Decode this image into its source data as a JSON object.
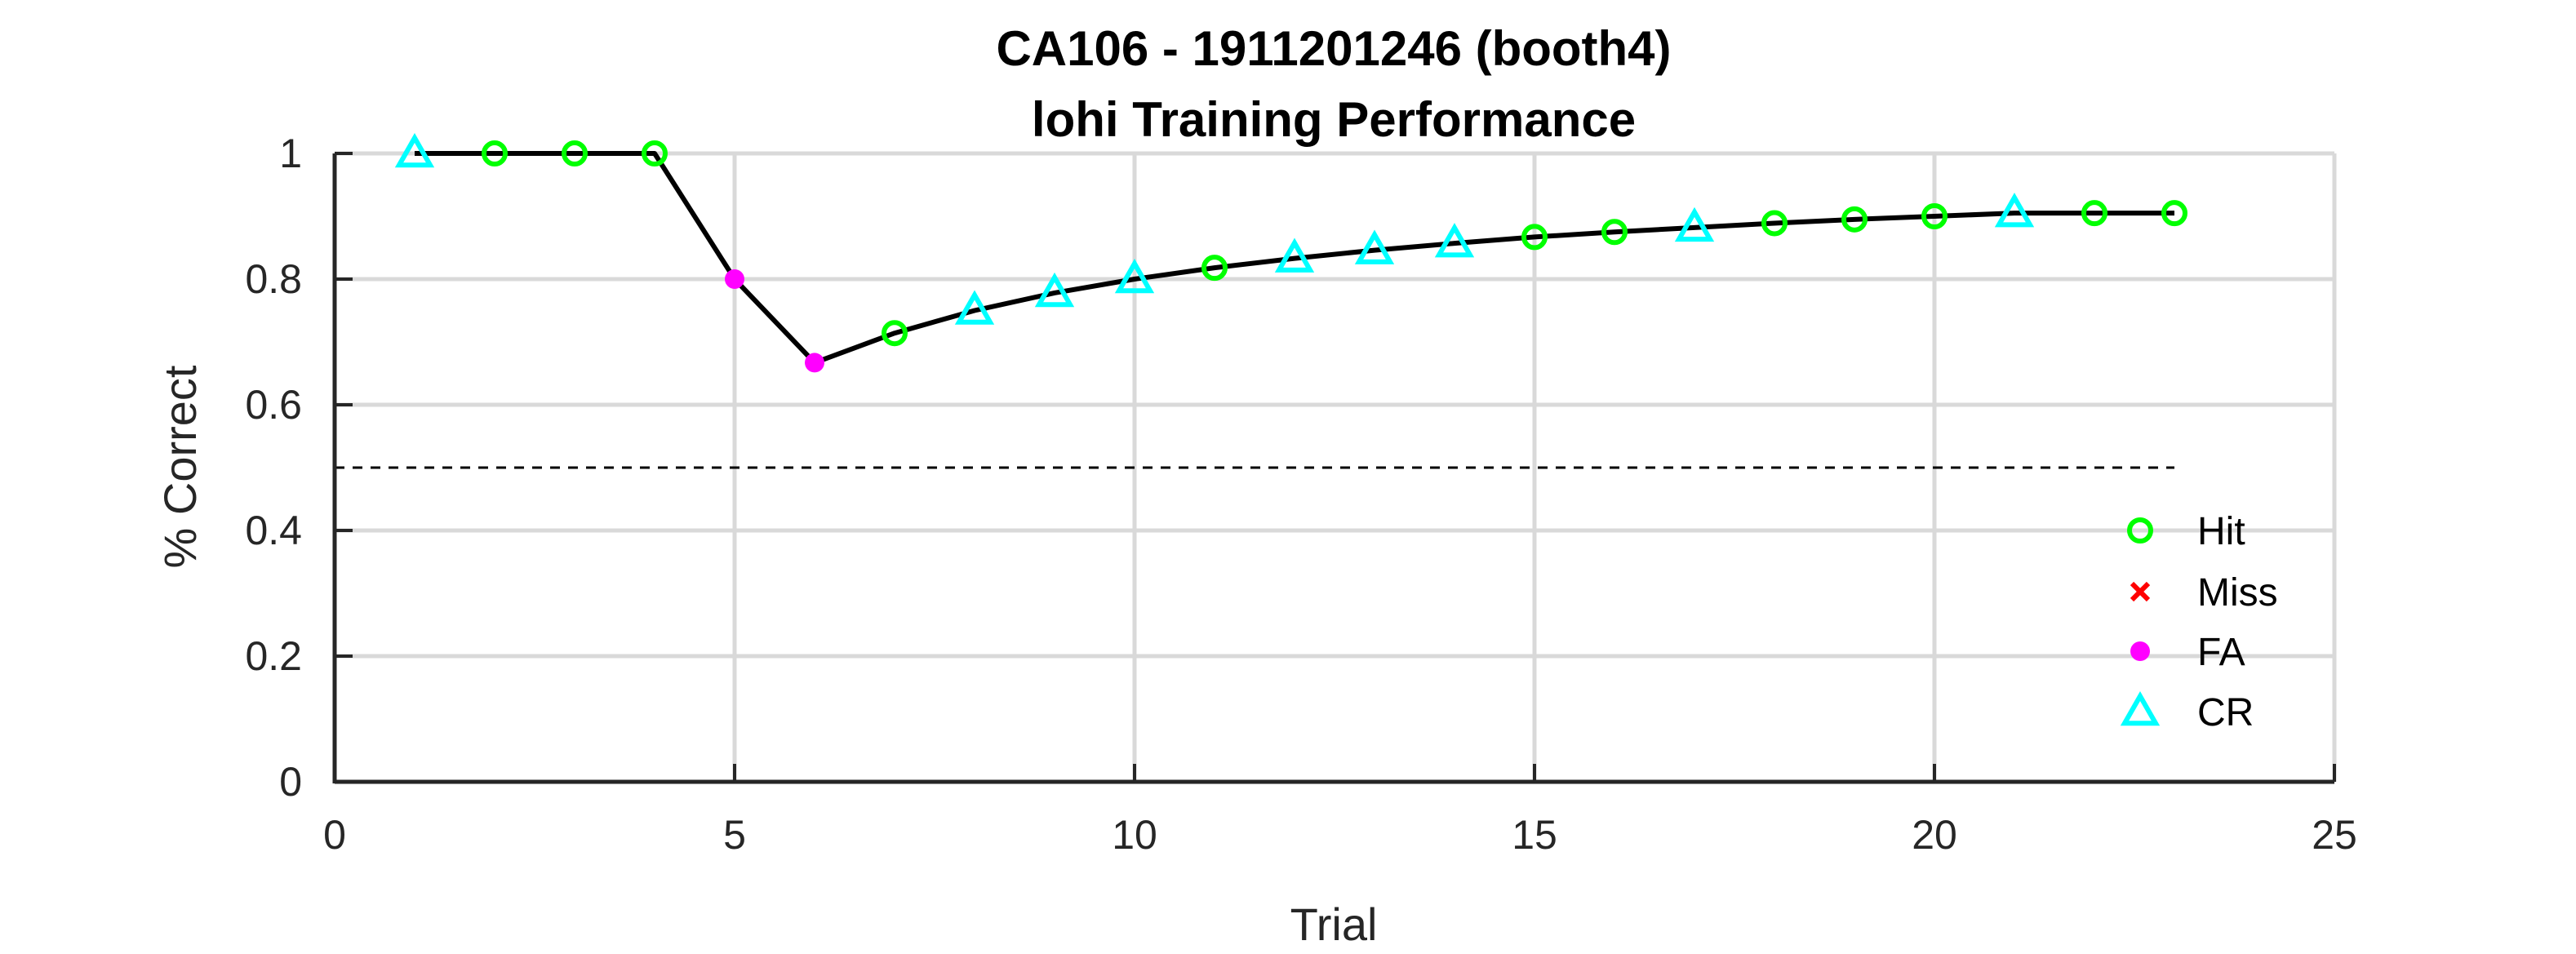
{
  "chart_data": {
    "type": "line",
    "title": "CA106 - 1911201246 (booth4)",
    "subtitle": "lohi Training Performance",
    "xlabel": "Trial",
    "ylabel": "% Correct",
    "xlim": [
      0,
      25
    ],
    "ylim": [
      0,
      1
    ],
    "xticks": [
      0,
      5,
      10,
      15,
      20,
      25
    ],
    "yticks": [
      0,
      0.2,
      0.4,
      0.6,
      0.8,
      1
    ],
    "grid": true,
    "reference_line": {
      "y": 0.5,
      "x_range": [
        0,
        23
      ],
      "style": "dashed"
    },
    "x": [
      1,
      2,
      3,
      4,
      5,
      6,
      7,
      8,
      9,
      10,
      11,
      12,
      13,
      14,
      15,
      16,
      17,
      18,
      19,
      20,
      21,
      22,
      23
    ],
    "values": [
      1.0,
      1.0,
      1.0,
      1.0,
      0.8,
      0.667,
      0.714,
      0.75,
      0.778,
      0.8,
      0.818,
      0.833,
      0.846,
      0.857,
      0.867,
      0.875,
      0.882,
      0.889,
      0.895,
      0.9,
      0.905,
      0.905,
      0.905
    ],
    "outcomes": [
      "CR",
      "Hit",
      "Hit",
      "Hit",
      "FA",
      "FA",
      "Hit",
      "CR",
      "CR",
      "CR",
      "Hit",
      "CR",
      "CR",
      "CR",
      "Hit",
      "Hit",
      "CR",
      "Hit",
      "Hit",
      "Hit",
      "CR",
      "Hit",
      "Hit"
    ],
    "legend": {
      "position": "bottom-right",
      "entries": [
        {
          "label": "Hit",
          "marker": "circle-open",
          "color": "#00ff00"
        },
        {
          "label": "Miss",
          "marker": "x",
          "color": "#ff0000"
        },
        {
          "label": "FA",
          "marker": "dot",
          "color": "#ff00ff"
        },
        {
          "label": "CR",
          "marker": "triangle-open",
          "color": "#00ffff"
        }
      ]
    },
    "line_color": "#000000"
  }
}
